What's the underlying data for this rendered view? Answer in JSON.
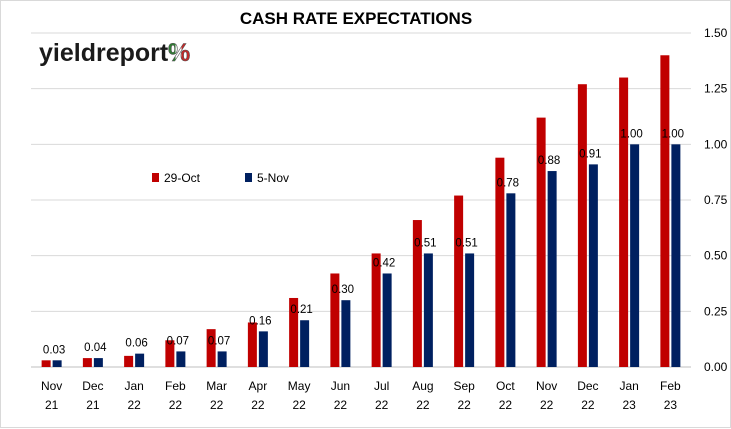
{
  "chart_data": {
    "type": "bar",
    "title": "CASH RATE EXPECTATIONS",
    "categories": [
      [
        "Nov",
        "21"
      ],
      [
        "Dec",
        "21"
      ],
      [
        "Jan",
        "22"
      ],
      [
        "Feb",
        "22"
      ],
      [
        "Mar",
        "22"
      ],
      [
        "Apr",
        "22"
      ],
      [
        "May",
        "22"
      ],
      [
        "Jun",
        "22"
      ],
      [
        "Jul",
        "22"
      ],
      [
        "Aug",
        "22"
      ],
      [
        "Sep",
        "22"
      ],
      [
        "Oct",
        "22"
      ],
      [
        "Nov",
        "22"
      ],
      [
        "Dec",
        "22"
      ],
      [
        "Jan",
        "23"
      ],
      [
        "Feb",
        "23"
      ]
    ],
    "series": [
      {
        "name": "29-Oct",
        "color": "#c00000",
        "values": [
          0.03,
          0.04,
          0.05,
          0.12,
          0.17,
          0.2,
          0.31,
          0.42,
          0.51,
          0.66,
          0.77,
          0.94,
          1.12,
          1.27,
          1.3,
          1.4
        ]
      },
      {
        "name": "5-Nov",
        "color": "#002060",
        "values": [
          0.03,
          0.04,
          0.06,
          0.07,
          0.07,
          0.16,
          0.21,
          0.3,
          0.42,
          0.51,
          0.51,
          0.78,
          0.88,
          0.91,
          1.0,
          1.0
        ],
        "data_labels": [
          "0.03",
          "0.04",
          "0.06",
          "0.07",
          "0.07",
          "0.16",
          "0.21",
          "0.30",
          "0.42",
          "0.51",
          "0.51",
          "0.78",
          "0.88",
          "0.91",
          "1.00",
          "1.00"
        ]
      }
    ],
    "ylim": [
      0,
      1.5
    ],
    "yticks": [
      "0.00",
      "0.25",
      "0.50",
      "0.75",
      "1.00",
      "1.25",
      "1.50"
    ],
    "y_axis_side": "right",
    "grid": true,
    "legend_position": "upper-left"
  },
  "logo": {
    "text_main": "yieldreport",
    "text_percent": "%",
    "colors": [
      "#2e7d32",
      "#ffffff",
      "#c62828"
    ]
  }
}
